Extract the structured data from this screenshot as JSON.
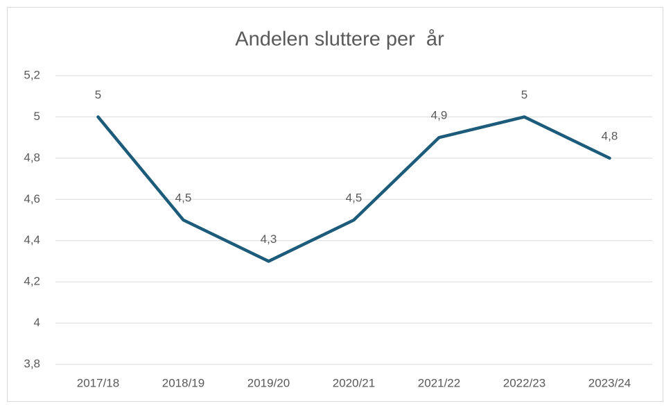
{
  "chart_data": {
    "type": "line",
    "title": "Andelen sluttere per  år",
    "categories": [
      "2017/18",
      "2018/19",
      "2019/20",
      "2020/21",
      "2021/22",
      "2022/23",
      "2023/24"
    ],
    "series": [
      {
        "color": "#1d5b7b",
        "values": [
          5,
          4.5,
          4.3,
          4.5,
          4.9,
          5,
          4.8
        ],
        "value_labels": [
          "5",
          "4,5",
          "4,3",
          "4,5",
          "4,9",
          "5",
          "4,8"
        ]
      }
    ],
    "ylim": [
      3.8,
      5.2
    ],
    "yticks": [
      {
        "value": 3.8,
        "label": "3,8"
      },
      4,
      {
        "value": 4.2,
        "label": "4,2"
      },
      {
        "value": 4.4,
        "label": "4,4"
      },
      {
        "value": 4.6,
        "label": "4,6"
      },
      {
        "value": 4.8,
        "label": "4,8"
      },
      5,
      {
        "value": 5.2,
        "label": "5,2"
      }
    ],
    "grid": true
  }
}
